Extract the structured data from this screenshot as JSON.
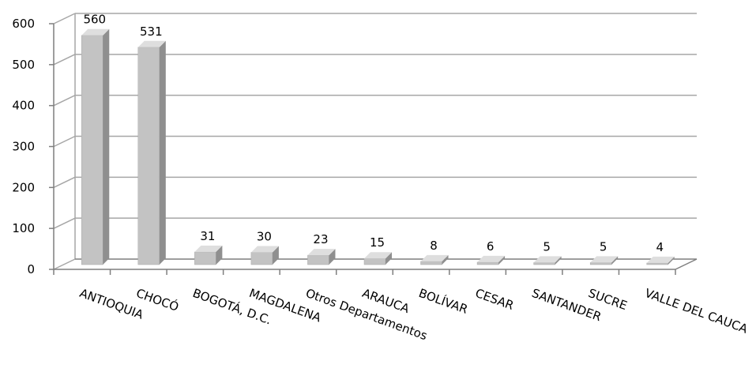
{
  "chart_data": {
    "type": "bar",
    "style": "3d-column",
    "categories": [
      "ANTIOQUIA",
      "CHOCÓ",
      "BOGOTÁ, D.C.",
      "MAGDALENA",
      "Otros Departamentos",
      "ARAUCA",
      "BOLÍVAR",
      "CESAR",
      "SANTANDER",
      "SUCRE",
      "VALLE DEL CAUCA"
    ],
    "values": [
      560,
      531,
      31,
      30,
      23,
      15,
      8,
      6,
      5,
      5,
      4
    ],
    "data_labels": [
      "560",
      "531",
      "31",
      "30",
      "23",
      "15",
      "8",
      "6",
      "5",
      "5",
      "4"
    ],
    "yticks": [
      0,
      100,
      200,
      300,
      400,
      500,
      600
    ],
    "ytick_labels": [
      "0",
      "100",
      "200",
      "300",
      "400",
      "500",
      "600"
    ],
    "ylim": [
      0,
      600
    ],
    "title": "",
    "xlabel": "",
    "ylabel": "",
    "grid": true,
    "legend": "none",
    "colors": {
      "bar_front": "#c3c3c3",
      "bar_side": "#8f8f8f",
      "bar_top": "#dedede",
      "grid": "#a6a6a6",
      "axis": "#7f7f7f"
    }
  }
}
